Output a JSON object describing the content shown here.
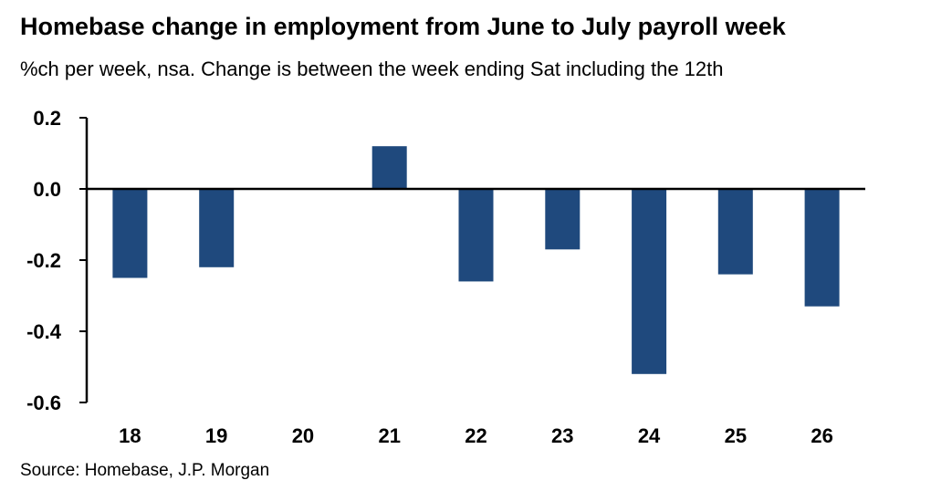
{
  "chart_data": {
    "type": "bar",
    "title": "Homebase change in employment from June to July payroll week",
    "subtitle": "%ch per week, nsa. Change is between the week ending Sat including the 12th",
    "source": "Source: Homebase, J.P. Morgan",
    "categories": [
      "18",
      "19",
      "20",
      "21",
      "22",
      "23",
      "24",
      "25",
      "26"
    ],
    "values": [
      -0.25,
      -0.22,
      0.0,
      0.12,
      -0.26,
      -0.17,
      -0.52,
      -0.24,
      -0.33
    ],
    "y_ticks": [
      "0.2",
      "0.0",
      "-0.2",
      "-0.4",
      "-0.6"
    ],
    "y_tick_values": [
      0.2,
      0.0,
      -0.2,
      -0.4,
      -0.6
    ],
    "ylim": [
      -0.6,
      0.2
    ],
    "xlabel": "",
    "ylabel": "",
    "grid": false,
    "bar_color": "#1f497d"
  }
}
